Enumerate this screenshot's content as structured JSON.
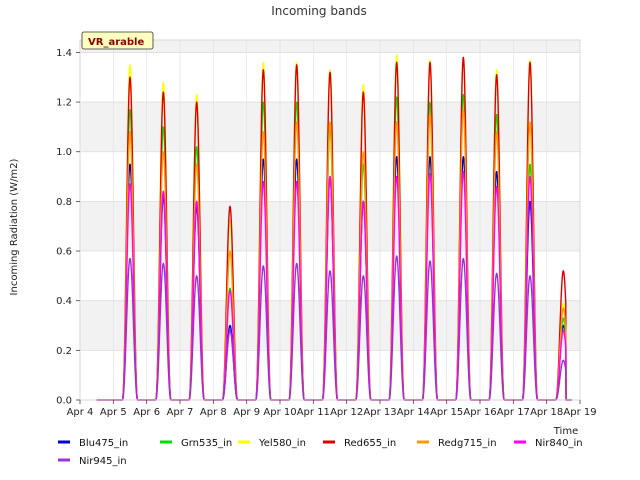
{
  "chart_data": {
    "type": "line",
    "title": "Incoming bands",
    "xlabel": "Time",
    "ylabel": "Incoming Radiation (W/m2)",
    "badge": "VR_arable",
    "x_ticks": [
      "Apr 4",
      "Apr 5",
      "Apr 6",
      "Apr 7",
      "Apr 8",
      "Apr 9",
      "Apr 10",
      "Apr 11",
      "Apr 12",
      "Apr 13",
      "Apr 14",
      "Apr 15",
      "Apr 16",
      "Apr 17",
      "Apr 18",
      "Apr 19"
    ],
    "xlim": [
      "Apr 4",
      "Apr 19"
    ],
    "y_ticks": [
      "0.0",
      "0.2",
      "0.4",
      "0.6",
      "0.8",
      "1.0",
      "1.2",
      "1.4"
    ],
    "ylim": [
      0,
      1.45
    ],
    "grid": true,
    "legend_position": "bottom",
    "day_centers": [
      "Apr 5 12:00",
      "Apr 6 12:00",
      "Apr 7 12:00",
      "Apr 8 12:00",
      "Apr 9 12:00",
      "Apr 10 12:00",
      "Apr 11 12:00",
      "Apr 12 12:00",
      "Apr 13 12:00",
      "Apr 14 12:00",
      "Apr 15 12:00",
      "Apr 16 12:00",
      "Apr 17 12:00",
      "Apr 18 12:00"
    ],
    "series": [
      {
        "name": "Blu475_in",
        "color": "#0000cc",
        "peaks": [
          0.95,
          0.82,
          0.78,
          0.3,
          0.97,
          0.97,
          0.9,
          0.8,
          0.98,
          0.98,
          0.98,
          0.92,
          0.8,
          0.3
        ]
      },
      {
        "name": "Grn535_in",
        "color": "#00dd00",
        "peaks": [
          1.17,
          1.1,
          1.02,
          0.45,
          1.2,
          1.2,
          1.1,
          0.95,
          1.22,
          1.2,
          1.23,
          1.15,
          0.95,
          0.33
        ]
      },
      {
        "name": "Yel580_in",
        "color": "#ffff00",
        "peaks": [
          1.35,
          1.28,
          1.23,
          0.72,
          1.36,
          1.36,
          1.33,
          1.27,
          1.39,
          1.37,
          1.38,
          1.33,
          1.37,
          0.39
        ]
      },
      {
        "name": "Red655_in",
        "color": "#dd0000",
        "peaks": [
          1.3,
          1.24,
          1.2,
          0.78,
          1.33,
          1.35,
          1.32,
          1.24,
          1.36,
          1.36,
          1.38,
          1.31,
          1.36,
          0.52
        ]
      },
      {
        "name": "Redg715_in",
        "color": "#ff9900",
        "peaks": [
          1.08,
          1.0,
          0.95,
          0.6,
          1.08,
          1.12,
          1.12,
          1.0,
          1.12,
          1.15,
          1.17,
          1.08,
          1.12,
          0.37
        ]
      },
      {
        "name": "Nir840_in",
        "color": "#ff00ff",
        "peaks": [
          0.87,
          0.84,
          0.8,
          0.44,
          0.88,
          0.88,
          0.9,
          0.8,
          0.9,
          0.91,
          0.92,
          0.86,
          0.9,
          0.28
        ]
      },
      {
        "name": "Nir945_in",
        "color": "#9933cc",
        "peaks": [
          0.57,
          0.55,
          0.5,
          0.28,
          0.54,
          0.55,
          0.52,
          0.5,
          0.58,
          0.56,
          0.57,
          0.51,
          0.5,
          0.16
        ]
      }
    ]
  }
}
